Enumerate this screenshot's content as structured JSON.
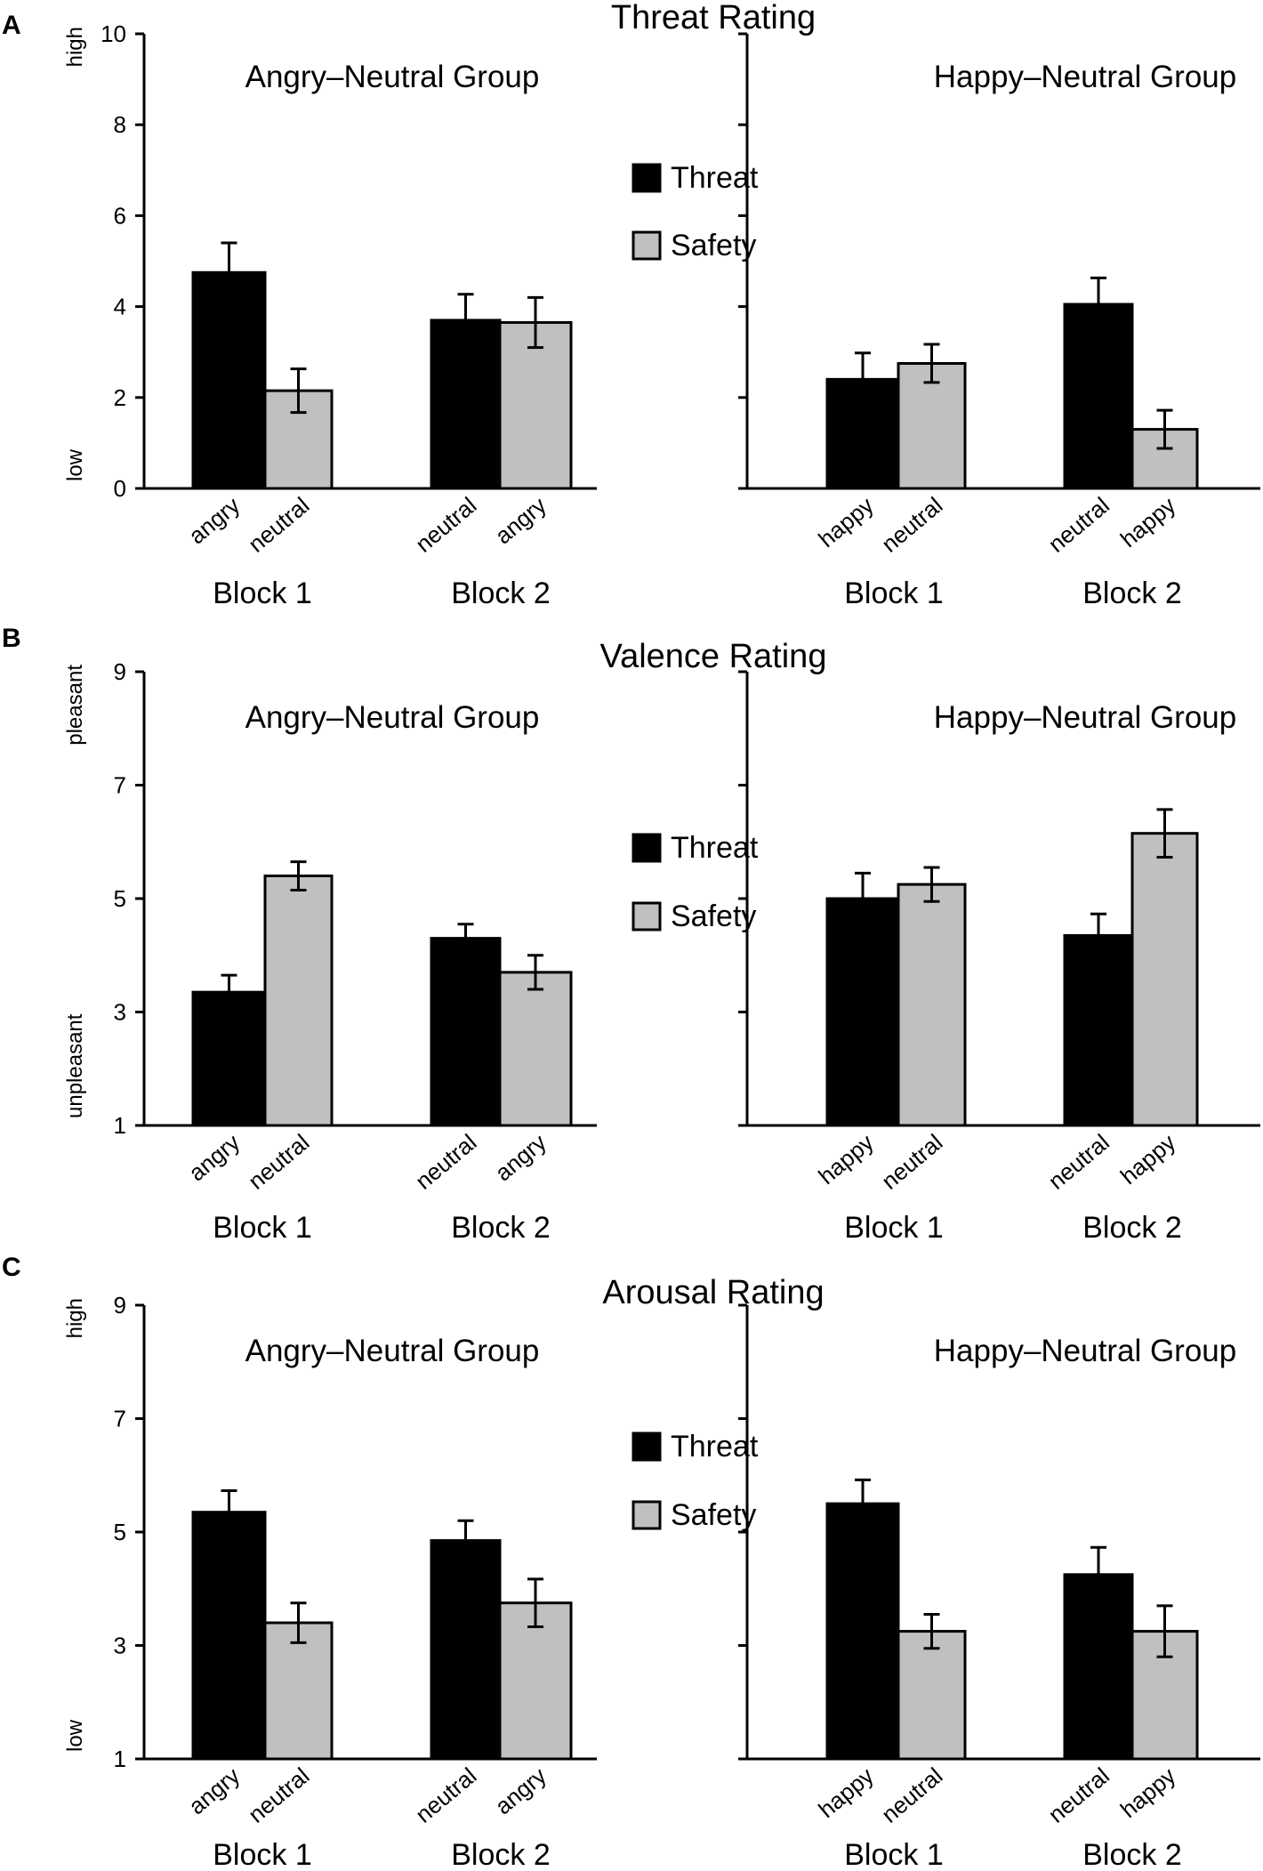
{
  "colors": {
    "threat": "#000000",
    "safety": "#c0c0c0",
    "axis": "#000000"
  },
  "legend": {
    "threat": "Threat",
    "safety": "Safety"
  },
  "chart_data": [
    {
      "type": "bar",
      "panel": "A",
      "title": "Threat Rating",
      "ylim": [
        0,
        10
      ],
      "yticks": [
        0,
        2,
        4,
        6,
        8,
        10
      ],
      "ylabel_low": "low",
      "ylabel_high": "high",
      "groups": [
        {
          "name": "Angry–Neutral  Group",
          "blocks": [
            {
              "label": "Block 1",
              "bars": [
                {
                  "series": "Threat",
                  "category": "angry",
                  "value": 4.75,
                  "error": 0.65
                },
                {
                  "series": "Safety",
                  "category": "neutral",
                  "value": 2.15,
                  "error": 0.48
                }
              ]
            },
            {
              "label": "Block 2",
              "bars": [
                {
                  "series": "Threat",
                  "category": "neutral",
                  "value": 3.7,
                  "error": 0.57
                },
                {
                  "series": "Safety",
                  "category": "angry",
                  "value": 3.65,
                  "error": 0.55
                }
              ]
            }
          ]
        },
        {
          "name": "Happy–Neutral  Group",
          "blocks": [
            {
              "label": "Block 1",
              "bars": [
                {
                  "series": "Threat",
                  "category": "happy",
                  "value": 2.4,
                  "error": 0.58
                },
                {
                  "series": "Safety",
                  "category": "neutral",
                  "value": 2.75,
                  "error": 0.42
                }
              ]
            },
            {
              "label": "Block 2",
              "bars": [
                {
                  "series": "Threat",
                  "category": "neutral",
                  "value": 4.05,
                  "error": 0.58
                },
                {
                  "series": "Safety",
                  "category": "happy",
                  "value": 1.3,
                  "error": 0.42
                }
              ]
            }
          ]
        }
      ]
    },
    {
      "type": "bar",
      "panel": "B",
      "title": "Valence Rating",
      "ylim": [
        1,
        9
      ],
      "yticks": [
        1,
        3,
        5,
        7,
        9
      ],
      "ylabel_low": "unpleasant",
      "ylabel_high": "pleasant",
      "groups": [
        {
          "name": "Angry–Neutral  Group",
          "blocks": [
            {
              "label": "Block 1",
              "bars": [
                {
                  "series": "Threat",
                  "category": "angry",
                  "value": 3.35,
                  "error": 0.3
                },
                {
                  "series": "Safety",
                  "category": "neutral",
                  "value": 5.4,
                  "error": 0.25
                }
              ]
            },
            {
              "label": "Block 2",
              "bars": [
                {
                  "series": "Threat",
                  "category": "neutral",
                  "value": 4.3,
                  "error": 0.25
                },
                {
                  "series": "Safety",
                  "category": "angry",
                  "value": 3.7,
                  "error": 0.3
                }
              ]
            }
          ]
        },
        {
          "name": "Happy–Neutral  Group",
          "blocks": [
            {
              "label": "Block 1",
              "bars": [
                {
                  "series": "Threat",
                  "category": "happy",
                  "value": 5.0,
                  "error": 0.45
                },
                {
                  "series": "Safety",
                  "category": "neutral",
                  "value": 5.25,
                  "error": 0.3
                }
              ]
            },
            {
              "label": "Block 2",
              "bars": [
                {
                  "series": "Threat",
                  "category": "neutral",
                  "value": 4.35,
                  "error": 0.38
                },
                {
                  "series": "Safety",
                  "category": "happy",
                  "value": 6.15,
                  "error": 0.42
                }
              ]
            }
          ]
        }
      ]
    },
    {
      "type": "bar",
      "panel": "C",
      "title": "Arousal Rating",
      "ylim": [
        1,
        9
      ],
      "yticks": [
        1,
        3,
        5,
        7,
        9
      ],
      "ylabel_low": "low",
      "ylabel_high": "high",
      "groups": [
        {
          "name": "Angry–Neutral  Group",
          "blocks": [
            {
              "label": "Block 1",
              "bars": [
                {
                  "series": "Threat",
                  "category": "angry",
                  "value": 5.35,
                  "error": 0.38
                },
                {
                  "series": "Safety",
                  "category": "neutral",
                  "value": 3.4,
                  "error": 0.35
                }
              ]
            },
            {
              "label": "Block 2",
              "bars": [
                {
                  "series": "Threat",
                  "category": "neutral",
                  "value": 4.85,
                  "error": 0.35
                },
                {
                  "series": "Safety",
                  "category": "angry",
                  "value": 3.75,
                  "error": 0.42
                }
              ]
            }
          ]
        },
        {
          "name": "Happy–Neutral  Group",
          "blocks": [
            {
              "label": "Block 1",
              "bars": [
                {
                  "series": "Threat",
                  "category": "happy",
                  "value": 5.5,
                  "error": 0.42
                },
                {
                  "series": "Safety",
                  "category": "neutral",
                  "value": 3.25,
                  "error": 0.3
                }
              ]
            },
            {
              "label": "Block 2",
              "bars": [
                {
                  "series": "Threat",
                  "category": "neutral",
                  "value": 4.25,
                  "error": 0.48
                },
                {
                  "series": "Safety",
                  "category": "happy",
                  "value": 3.25,
                  "error": 0.45
                }
              ]
            }
          ]
        }
      ]
    }
  ]
}
